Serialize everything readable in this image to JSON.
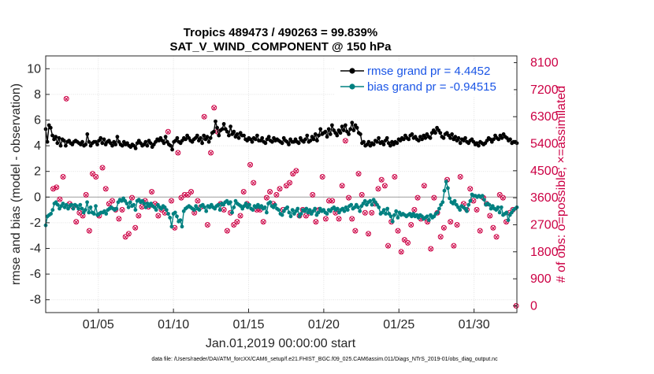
{
  "chart_data": {
    "type": "line",
    "title_line1": "Tropics 489473 / 490263 = 99.839%",
    "title_line2": "SAT_V_WIND_COMPONENT @ 150 hPa",
    "xlabel": "Jan.01,2019 00:00:00 start",
    "ylabel_left": "rmse and bias (model - observation)",
    "ylabel_right": "# of obs: o=possible; ×=assimilated",
    "footnote": "data file: /Users/raeder/DAI/ATM_forcXX/CAM6_setup/f.e21.FHIST_BGC.f09_025.CAM6assim.011/Diags_NTrS_2019-01/obs_diag_output.nc",
    "xlim": [
      0.5,
      31.85
    ],
    "x_ticks": [
      4,
      9,
      14,
      19,
      24,
      29
    ],
    "x_tick_labels": [
      "01/05",
      "01/10",
      "01/15",
      "01/20",
      "01/25",
      "01/30"
    ],
    "ylim_left": [
      -9,
      11
    ],
    "y_ticks_left": [
      -8,
      -6,
      -4,
      -2,
      0,
      2,
      4,
      6,
      8,
      10
    ],
    "y_tick_labels_left": [
      "-8",
      "-6",
      "-4",
      "-2",
      "0",
      "2",
      "4",
      "6",
      "8",
      "10"
    ],
    "ylim_right": [
      -225,
      8325
    ],
    "y_ticks_right": [
      0,
      900,
      1800,
      2700,
      3600,
      4500,
      5400,
      6300,
      7200,
      8100
    ],
    "y_tick_labels_right": [
      "0",
      "900",
      "1800",
      "2700",
      "3600",
      "4500",
      "5400",
      "6300",
      "7200",
      "8100"
    ],
    "zero_line": 0,
    "grid": true,
    "legend_position": "top-right",
    "series": [
      {
        "name": "rmse grand pr = 4.4452",
        "color": "#000000",
        "marker": "dot",
        "values": [
          5.3,
          4.3,
          5.6,
          5.4,
          4.8,
          4.5,
          4.7,
          4.2,
          4.6,
          4.0,
          4.5,
          4.4,
          4.0,
          4.3,
          4.4,
          4.2,
          4.1,
          4.3,
          4.4,
          4.3,
          4.2,
          4.1,
          4.3,
          4.0,
          4.1,
          4.9,
          4.3,
          4.0,
          4.2,
          4.3,
          4.3,
          4.1,
          4.4,
          4.6,
          4.2,
          4.5,
          4.1,
          4.3,
          4.4,
          4.2,
          4.0,
          4.3,
          4.1,
          4.7,
          4.3,
          4.1,
          4.0,
          4.3,
          4.1,
          4.2,
          4.0,
          3.9,
          4.1,
          4.0,
          3.8,
          4.2,
          4.4,
          4.2,
          4.0,
          4.1,
          4.3,
          4.0,
          4.4,
          4.2,
          3.9,
          4.1,
          4.3,
          4.5,
          4.4,
          4.6,
          4.4,
          4.2,
          4.7,
          4.3,
          4.1,
          4.0,
          3.7,
          4.3,
          4.4,
          4.6,
          4.3,
          4.2,
          4.4,
          4.6,
          4.5,
          4.8,
          4.6,
          4.4,
          4.3,
          4.5,
          4.6,
          4.8,
          4.4,
          4.6,
          4.2,
          4.8,
          4.5,
          4.7,
          4.3,
          4.6,
          5.0,
          5.1,
          5.9,
          5.4,
          4.8,
          5.2,
          5.3,
          5.7,
          5.3,
          5.1,
          4.8,
          5.5,
          4.9,
          5.1,
          4.7,
          4.9,
          4.6,
          5.0,
          4.8,
          4.8,
          4.5,
          4.4,
          4.6,
          4.5,
          4.3,
          4.6,
          4.5,
          4.8,
          4.4,
          4.4,
          4.6,
          4.3,
          4.2,
          4.5,
          4.7,
          4.4,
          4.3,
          4.6,
          4.4,
          4.5,
          4.4,
          4.3,
          4.2,
          4.6,
          4.4,
          4.3,
          4.1,
          4.5,
          4.3,
          4.3,
          4.5,
          4.3,
          4.2,
          4.6,
          4.4,
          4.3,
          4.5,
          4.8,
          4.3,
          4.4,
          4.7,
          4.5,
          4.9,
          4.4,
          4.8,
          5.3,
          4.9,
          5.0,
          5.1,
          4.7,
          5.3,
          4.9,
          5.6,
          5.2,
          5.0,
          4.8,
          5.2,
          5.0,
          5.5,
          5.2,
          5.6,
          5.1,
          4.9,
          5.3,
          5.8,
          5.2,
          5.6,
          5.4,
          5.0,
          4.9,
          4.2,
          4.3,
          4.0,
          4.1,
          4.3,
          4.0,
          4.2,
          4.1,
          4.4,
          4.3,
          4.6,
          4.2,
          4.3,
          4.1,
          4.4,
          4.6,
          4.2,
          4.0,
          4.3,
          4.1,
          4.3,
          4.2,
          4.5,
          4.4,
          4.6,
          4.5,
          4.8,
          4.6,
          4.5,
          4.8,
          4.9,
          4.6,
          4.7,
          4.5,
          4.4,
          4.7,
          4.5,
          4.8,
          4.6,
          4.9,
          4.7,
          4.6,
          5.0,
          5.2,
          5.0,
          5.4,
          5.2,
          5.0,
          4.7,
          4.6,
          4.9,
          5.0,
          4.8,
          4.6,
          4.9,
          4.5,
          4.7,
          4.4,
          4.6,
          4.2,
          4.5,
          4.4,
          4.6,
          4.3,
          4.2,
          4.4,
          4.5,
          4.3,
          4.1,
          4.2,
          4.0,
          4.3,
          4.2,
          4.1,
          4.2,
          4.4,
          4.6,
          4.5,
          4.3,
          4.5,
          4.8,
          4.6,
          4.5,
          4.8,
          4.6,
          4.9,
          4.7,
          4.6,
          4.4,
          4.5,
          4.2,
          4.3,
          4.3,
          4.2
        ]
      },
      {
        "name": "bias grand pr = -0.94515",
        "color": "#008080",
        "marker": "dot",
        "values": [
          -2.2,
          -1.5,
          -1.4,
          -1.3,
          -1.0,
          -0.5,
          -0.4,
          -0.6,
          -0.9,
          -0.7,
          -0.5,
          -0.8,
          -0.6,
          -0.9,
          -0.7,
          -0.6,
          -0.9,
          -0.6,
          -0.7,
          -0.9,
          -0.6,
          -0.9,
          -1.2,
          -1.0,
          -0.4,
          -1.2,
          -0.8,
          -1.2,
          -1.3,
          -0.7,
          -1.4,
          -1.3,
          -1.2,
          -1.2,
          -1.1,
          -1.3,
          -1.0,
          -0.9,
          -0.8,
          -0.9,
          -1.0,
          -0.9,
          -0.4,
          -0.2,
          -0.3,
          -0.1,
          -0.3,
          -0.5,
          -0.8,
          -0.4,
          -0.7,
          -0.6,
          -1.0,
          -0.3,
          -0.2,
          -0.4,
          -0.3,
          -0.5,
          -0.8,
          -0.5,
          -0.7,
          -0.5,
          -0.7,
          -0.8,
          -1.0,
          -0.6,
          -0.8,
          -0.9,
          -0.7,
          -0.8,
          -1.0,
          -1.3,
          -1.6,
          -2.3,
          -1.3,
          -1.2,
          -1.5,
          -1.9,
          -1.8,
          -2.3,
          -1.1,
          -0.9,
          -0.8,
          -0.7,
          -0.8,
          -0.9,
          -1.0,
          -0.7,
          -0.9,
          -1.0,
          -0.7,
          -0.6,
          -0.8,
          -1.1,
          -0.7,
          -0.8,
          -0.6,
          -0.8,
          -0.9,
          -0.7,
          -0.6,
          -1.0,
          -0.5,
          -0.6,
          -0.4,
          -0.3,
          -0.5,
          -0.4,
          -1.2,
          -0.8,
          -0.3,
          -0.5,
          -0.6,
          -0.7,
          -0.9,
          -0.7,
          -0.5,
          -0.8,
          -0.6,
          -0.9,
          -1.0,
          -0.7,
          -0.8,
          -0.6,
          -0.8,
          -0.7,
          -0.9,
          -0.8,
          -1.2,
          -0.5,
          -0.4,
          -0.7,
          -0.8,
          -0.6,
          -0.9,
          -1.0,
          -1.3,
          -1.4,
          -1.1,
          -0.9,
          -0.8,
          -1.2,
          -1.5,
          -1.0,
          -1.3,
          -1.1,
          -0.9,
          -1.5,
          -1.3,
          -1.0,
          -1.1,
          -0.9,
          -1.2,
          -1.0,
          -1.3,
          -1.1,
          -0.9,
          -1.4,
          -1.2,
          -0.9,
          -1.1,
          -1.0,
          -1.2,
          -1.3,
          -1.0,
          -1.1,
          -0.9,
          -0.8,
          -1.0,
          -0.9,
          -1.2,
          -1.0,
          -0.9,
          -1.1,
          -0.8,
          -1.0,
          -0.7,
          -0.6,
          -0.9,
          -0.8,
          -0.6,
          -0.8,
          -1.1,
          -0.7,
          -0.5,
          -0.3,
          -0.6,
          -0.4,
          -0.3,
          -0.6,
          -0.2,
          -0.4,
          -0.6,
          -0.8,
          -1.3,
          -1.2,
          -1.0,
          -1.3,
          -0.9,
          -1.3,
          -1.5,
          -1.9,
          -1.4,
          -1.1,
          -1.6,
          -1.2,
          -1.4,
          -1.3,
          -1.4,
          -1.5,
          -1.4,
          -1.3,
          -1.5,
          -1.3,
          -1.5,
          -1.4,
          -1.6,
          -1.4,
          -1.5,
          -1.7,
          -1.6,
          -1.5,
          -1.8,
          -1.4,
          -1.6,
          -1.5,
          -1.3,
          -1.2,
          -0.9,
          -0.6,
          -0.4,
          0.5,
          1.2,
          0.7,
          -0.1,
          -0.4,
          -0.5,
          -0.3,
          -0.6,
          -0.8,
          -1.0,
          -0.7,
          -0.8,
          -0.9,
          -1.1,
          -0.6,
          -0.3,
          0.2,
          0.1,
          0.1,
          0.0,
          0.1,
          0.0,
          0.1,
          -0.2,
          -0.6,
          -0.5,
          -0.6,
          -0.9,
          -0.7,
          -0.9,
          -1.0,
          -0.8,
          -1.2,
          -0.8,
          -1.4,
          -1.3,
          -1.2,
          -1.8,
          -1.4,
          -1.2,
          -1.0,
          -0.9,
          -0.8
        ]
      }
    ],
    "obs_possible": {
      "name": "# obs possible",
      "color": "#cc0044",
      "values": [
        3900,
        3950,
        3550,
        4300,
        6900,
        3400,
        3300,
        2800,
        3100,
        3000,
        3700,
        2500,
        4400,
        4300,
        3000,
        4600,
        3900,
        3400,
        3500,
        3200,
        2900,
        3200,
        2300,
        2400,
        3600,
        2600,
        3000,
        3300,
        3500,
        3300,
        3800,
        3400,
        3000,
        3200,
        3100,
        5800,
        3500,
        2600,
        5100,
        3600,
        3700,
        3700,
        3800,
        3100,
        3500,
        3300,
        6300,
        2700,
        5100,
        6600,
        5800,
        3400,
        3200,
        2500,
        3100,
        2700,
        2800,
        3000,
        3800,
        3400,
        4700,
        4100,
        3200,
        3200,
        2800,
        3600,
        3800,
        3400,
        3700,
        3900,
        3200,
        4000,
        4100,
        4400,
        4500,
        3000,
        3200,
        3000,
        3100,
        3700,
        2800,
        3200,
        4300,
        2900,
        3500,
        3500,
        3100,
        2900,
        4000,
        5500,
        3600,
        2900,
        2500,
        4400,
        3700,
        3100,
        2400,
        3100,
        3400,
        3900,
        4200,
        4000,
        2000,
        2800,
        4300,
        2500,
        1800,
        2200,
        2100,
        2700,
        3200,
        3600,
        2900,
        4000,
        2800,
        1900,
        3600,
        3100,
        2300,
        2600,
        4200,
        2800,
        2000,
        2700,
        4300,
        3400,
        3200,
        3900,
        3500,
        3200,
        2500,
        3600,
        3400,
        3000,
        2600,
        2300,
        3700,
        3600,
        2800,
        3100,
        3200,
        0
      ]
    },
    "obs_assimilated": {
      "name": "# obs assimilated",
      "color": "#cc0044",
      "values": [
        3890,
        3940,
        3540,
        4290,
        6890,
        3390,
        3290,
        2790,
        3090,
        2990,
        3690,
        2490,
        4390,
        4290,
        2990,
        4590,
        3890,
        3390,
        3490,
        3190,
        2890,
        3190,
        2290,
        2390,
        3590,
        2590,
        2990,
        3290,
        3490,
        3290,
        3790,
        3390,
        2990,
        3190,
        3090,
        5790,
        3490,
        2590,
        5090,
        3590,
        3690,
        3690,
        3790,
        3090,
        3490,
        3290,
        6290,
        2690,
        5090,
        6590,
        5790,
        3390,
        3190,
        2490,
        3090,
        2690,
        2790,
        2990,
        3790,
        3390,
        4690,
        4090,
        3190,
        3190,
        2790,
        3590,
        3790,
        3390,
        3690,
        3890,
        3190,
        3990,
        4090,
        4390,
        4490,
        2990,
        3190,
        2990,
        3090,
        3690,
        2790,
        3190,
        4290,
        2890,
        3490,
        3490,
        3090,
        2890,
        3990,
        5490,
        3590,
        2890,
        2490,
        4390,
        3690,
        3090,
        2390,
        3090,
        3390,
        3890,
        4190,
        3990,
        1990,
        2790,
        4290,
        2490,
        1790,
        2190,
        2090,
        2690,
        3190,
        3590,
        2890,
        3990,
        2790,
        1890,
        3590,
        3090,
        2290,
        2590,
        4190,
        2790,
        1990,
        2690,
        4290,
        3390,
        3190,
        3890,
        3490,
        3190,
        2490,
        3590,
        3390,
        2990,
        2590,
        2290,
        3690,
        3590,
        2790,
        3090,
        3190,
        0
      ]
    }
  }
}
